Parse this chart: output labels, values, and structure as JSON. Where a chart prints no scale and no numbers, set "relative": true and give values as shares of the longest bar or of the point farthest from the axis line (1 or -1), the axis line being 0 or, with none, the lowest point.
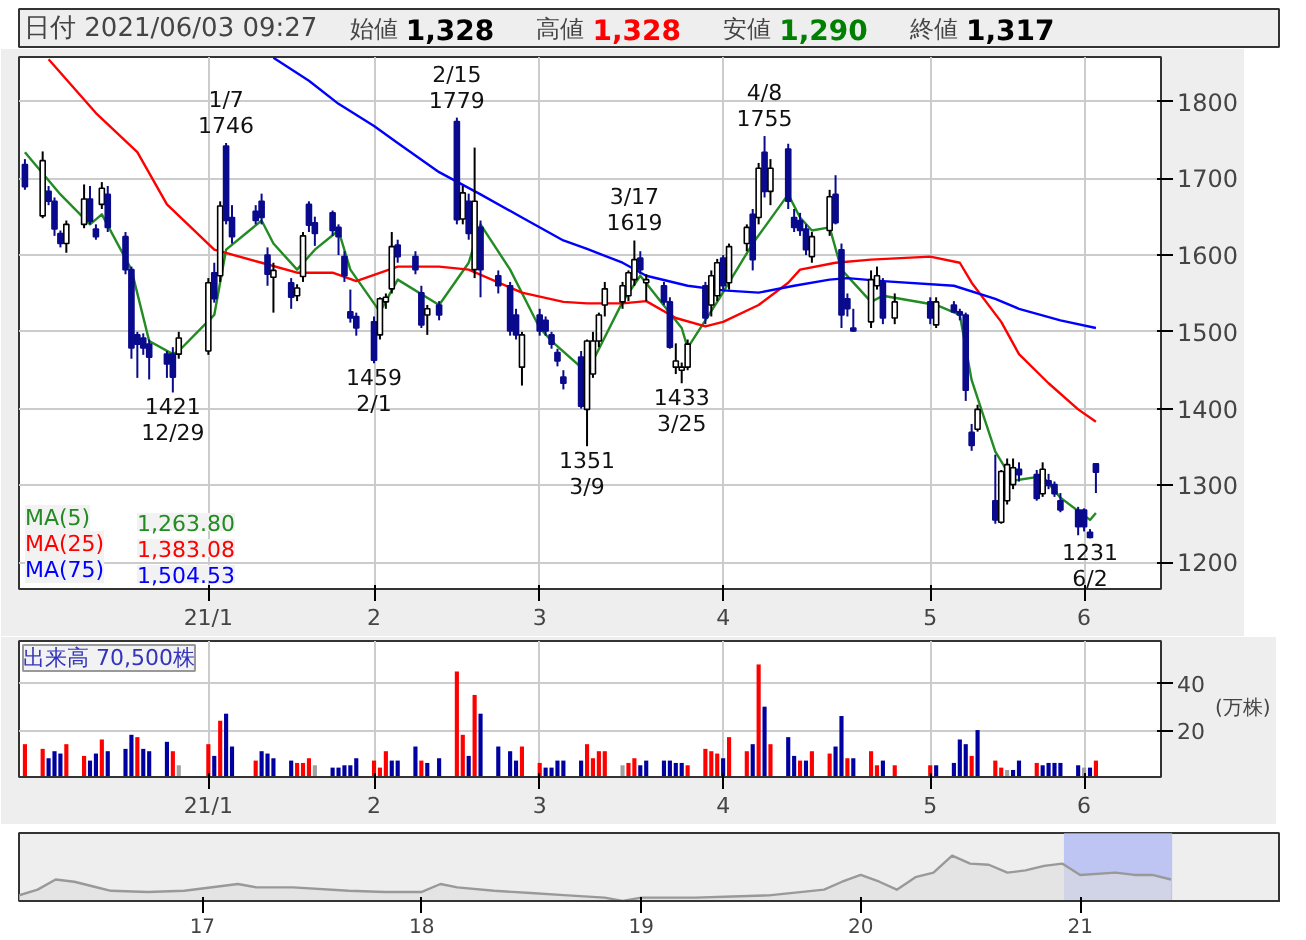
{
  "chart_data": [
    {
      "type": "candlestick",
      "title": "日付 2021/06/03 09:27",
      "annotations": [
        "始値 1,328",
        "高値 1,328",
        "安値 1,290",
        "終値 1,317",
        {
          "text": "1421\n12/29",
          "x": "2020-12-29",
          "y": 1421
        },
        {
          "text": "1/7\n1746",
          "x": "2021-01-07",
          "y": 1746
        },
        {
          "text": "1459\n2/1",
          "x": "2021-02-01",
          "y": 1459
        },
        {
          "text": "2/15\n1779",
          "x": "2021-02-15",
          "y": 1779
        },
        {
          "text": "1351\n3/9",
          "x": "2021-03-09",
          "y": 1351
        },
        {
          "text": "3/17\n1619",
          "x": "2021-03-17",
          "y": 1619
        },
        {
          "text": "1433\n3/25",
          "x": "2021-03-25",
          "y": 1433
        },
        {
          "text": "4/8\n1755",
          "x": "2021-04-08",
          "y": 1755
        },
        {
          "text": "1231\n6/2",
          "x": "2021-06-02",
          "y": 1231
        }
      ],
      "x": [
        "2020-12-04",
        "2020-12-07",
        "2020-12-08",
        "2020-12-09",
        "2020-12-10",
        "2020-12-11",
        "2020-12-14",
        "2020-12-15",
        "2020-12-16",
        "2020-12-17",
        "2020-12-18",
        "2020-12-21",
        "2020-12-22",
        "2020-12-23",
        "2020-12-24",
        "2020-12-25",
        "2020-12-28",
        "2020-12-29",
        "2020-12-30",
        "2021-01-04",
        "2021-01-05",
        "2021-01-06",
        "2021-01-07",
        "2021-01-08",
        "2021-01-12",
        "2021-01-13",
        "2021-01-14",
        "2021-01-15",
        "2021-01-18",
        "2021-01-19",
        "2021-01-20",
        "2021-01-21",
        "2021-01-22",
        "2021-01-25",
        "2021-01-26",
        "2021-01-27",
        "2021-01-28",
        "2021-01-29",
        "2021-02-01",
        "2021-02-02",
        "2021-02-03",
        "2021-02-04",
        "2021-02-05",
        "2021-02-08",
        "2021-02-09",
        "2021-02-10",
        "2021-02-12",
        "2021-02-15",
        "2021-02-16",
        "2021-02-17",
        "2021-02-18",
        "2021-02-19",
        "2021-02-22",
        "2021-02-24",
        "2021-02-25",
        "2021-02-26",
        "2021-03-01",
        "2021-03-02",
        "2021-03-03",
        "2021-03-04",
        "2021-03-05",
        "2021-03-08",
        "2021-03-09",
        "2021-03-10",
        "2021-03-11",
        "2021-03-12",
        "2021-03-15",
        "2021-03-16",
        "2021-03-17",
        "2021-03-18",
        "2021-03-19",
        "2021-03-22",
        "2021-03-23",
        "2021-03-24",
        "2021-03-25",
        "2021-03-26",
        "2021-03-29",
        "2021-03-30",
        "2021-03-31",
        "2021-04-01",
        "2021-04-02",
        "2021-04-05",
        "2021-04-06",
        "2021-04-07",
        "2021-04-08",
        "2021-04-09",
        "2021-04-12",
        "2021-04-13",
        "2021-04-14",
        "2021-04-15",
        "2021-04-16",
        "2021-04-19",
        "2021-04-20",
        "2021-04-21",
        "2021-04-22",
        "2021-04-23",
        "2021-04-26",
        "2021-04-27",
        "2021-04-28",
        "2021-04-30",
        "2021-05-06",
        "2021-05-07",
        "2021-05-10",
        "2021-05-11",
        "2021-05-12",
        "2021-05-13",
        "2021-05-14",
        "2021-05-17",
        "2021-05-18",
        "2021-05-19",
        "2021-05-20",
        "2021-05-21",
        "2021-05-24",
        "2021-05-25",
        "2021-05-26",
        "2021-05-27",
        "2021-05-28",
        "2021-05-31",
        "2021-06-01",
        "2021-06-02",
        "2021-06-03"
      ],
      "ohlc": [
        [
          1718,
          1725,
          1685,
          1689
        ],
        [
          1651,
          1735,
          1648,
          1723
        ],
        [
          1683,
          1690,
          1665,
          1670
        ],
        [
          1670,
          1675,
          1625,
          1634
        ],
        [
          1628,
          1632,
          1610,
          1615
        ],
        [
          1615,
          1645,
          1603,
          1640
        ],
        [
          1640,
          1692,
          1635,
          1673
        ],
        [
          1673,
          1690,
          1640,
          1644
        ],
        [
          1634,
          1640,
          1620,
          1624
        ],
        [
          1666,
          1695,
          1660,
          1687
        ],
        [
          1679,
          1690,
          1630,
          1636
        ],
        [
          1624,
          1630,
          1575,
          1581
        ],
        [
          1581,
          1585,
          1465,
          1479
        ],
        [
          1496,
          1500,
          1440,
          1484
        ],
        [
          1492,
          1498,
          1470,
          1479
        ],
        [
          1484,
          1490,
          1438,
          1467
        ],
        [
          1471,
          1475,
          1440,
          1458
        ],
        [
          1471,
          1480,
          1421,
          1441
        ],
        [
          1471,
          1500,
          1465,
          1492
        ],
        [
          1475,
          1570,
          1470,
          1564
        ],
        [
          1577,
          1590,
          1538,
          1543
        ],
        [
          1573,
          1670,
          1565,
          1664
        ],
        [
          1742,
          1746,
          1640,
          1645
        ],
        [
          1649,
          1665,
          1615,
          1624
        ],
        [
          1657,
          1665,
          1640,
          1645
        ],
        [
          1670,
          1680,
          1640,
          1649
        ],
        [
          1600,
          1610,
          1560,
          1575
        ],
        [
          1571,
          1590,
          1525,
          1580
        ],
        [
          1564,
          1570,
          1530,
          1545
        ],
        [
          1547,
          1562,
          1540,
          1557
        ],
        [
          1572,
          1630,
          1565,
          1625
        ],
        [
          1666,
          1670,
          1630,
          1639
        ],
        [
          1642,
          1650,
          1612,
          1628
        ],
        [
          1655,
          1658,
          1625,
          1632
        ],
        [
          1636,
          1640,
          1600,
          1624
        ],
        [
          1598,
          1605,
          1565,
          1573
        ],
        [
          1526,
          1555,
          1512,
          1518
        ],
        [
          1520,
          1525,
          1495,
          1505
        ],
        [
          1513,
          1520,
          1459,
          1463
        ],
        [
          1496,
          1545,
          1490,
          1543
        ],
        [
          1539,
          1550,
          1530,
          1545
        ],
        [
          1556,
          1630,
          1550,
          1611
        ],
        [
          1613,
          1620,
          1590,
          1598
        ],
        [
          1598,
          1605,
          1575,
          1581
        ],
        [
          1551,
          1560,
          1505,
          1509
        ],
        [
          1522,
          1535,
          1496,
          1530
        ],
        [
          1535,
          1540,
          1515,
          1522
        ],
        [
          1774,
          1779,
          1640,
          1646
        ],
        [
          1647,
          1690,
          1640,
          1681
        ],
        [
          1670,
          1680,
          1620,
          1628
        ],
        [
          1581,
          1740,
          1570,
          1670
        ],
        [
          1636,
          1645,
          1545,
          1581
        ],
        [
          1573,
          1580,
          1550,
          1560
        ],
        [
          1560,
          1565,
          1495,
          1501
        ],
        [
          1522,
          1530,
          1490,
          1496
        ],
        [
          1454,
          1500,
          1430,
          1496
        ],
        [
          1522,
          1530,
          1495,
          1501
        ],
        [
          1515,
          1520,
          1495,
          1501
        ],
        [
          1496,
          1500,
          1478,
          1484
        ],
        [
          1473,
          1478,
          1455,
          1462
        ],
        [
          1441,
          1450,
          1425,
          1433
        ],
        [
          1467,
          1475,
          1400,
          1403
        ],
        [
          1399,
          1490,
          1351,
          1488
        ],
        [
          1445,
          1500,
          1440,
          1488
        ],
        [
          1488,
          1525,
          1480,
          1522
        ],
        [
          1535,
          1565,
          1520,
          1556
        ],
        [
          1539,
          1565,
          1530,
          1560
        ],
        [
          1547,
          1580,
          1540,
          1577
        ],
        [
          1568,
          1619,
          1560,
          1594
        ],
        [
          1596,
          1605,
          1575,
          1581
        ],
        [
          1564,
          1575,
          1540,
          1568
        ],
        [
          1560,
          1565,
          1535,
          1539
        ],
        [
          1539,
          1545,
          1478,
          1480
        ],
        [
          1454,
          1485,
          1445,
          1462
        ],
        [
          1450,
          1460,
          1433,
          1454
        ],
        [
          1454,
          1490,
          1450,
          1484
        ],
        [
          1560,
          1565,
          1510,
          1518
        ],
        [
          1535,
          1580,
          1520,
          1573
        ],
        [
          1547,
          1595,
          1540,
          1590
        ],
        [
          1596,
          1600,
          1555,
          1560
        ],
        [
          1564,
          1615,
          1555,
          1611
        ],
        [
          1615,
          1640,
          1605,
          1636
        ],
        [
          1653,
          1660,
          1580,
          1594
        ],
        [
          1649,
          1720,
          1640,
          1713
        ],
        [
          1734,
          1755,
          1675,
          1683
        ],
        [
          1683,
          1725,
          1665,
          1713
        ],
        [
          1738,
          1745,
          1660,
          1670
        ],
        [
          1649,
          1660,
          1630,
          1636
        ],
        [
          1645,
          1655,
          1625,
          1632
        ],
        [
          1634,
          1640,
          1600,
          1607
        ],
        [
          1598,
          1630,
          1590,
          1624
        ],
        [
          1632,
          1685,
          1625,
          1676
        ],
        [
          1679,
          1704,
          1640,
          1642
        ],
        [
          1607,
          1615,
          1505,
          1522
        ],
        [
          1543,
          1550,
          1520,
          1530
        ],
        [
          1505,
          1530,
          1500,
          1501
        ],
        [
          1513,
          1580,
          1505,
          1568
        ],
        [
          1560,
          1585,
          1555,
          1573
        ],
        [
          1564,
          1570,
          1510,
          1518
        ],
        [
          1518,
          1550,
          1510,
          1539
        ],
        [
          1539,
          1545,
          1510,
          1518
        ],
        [
          1509,
          1545,
          1505,
          1539
        ],
        [
          1535,
          1540,
          1525,
          1526
        ],
        [
          1526,
          1530,
          1515,
          1522
        ],
        [
          1522,
          1525,
          1410,
          1424
        ],
        [
          1369,
          1380,
          1345,
          1352
        ],
        [
          1373,
          1405,
          1370,
          1399
        ],
        [
          1280,
          1340,
          1250,
          1255
        ],
        [
          1252,
          1320,
          1250,
          1318
        ],
        [
          1280,
          1335,
          1275,
          1327
        ],
        [
          1301,
          1335,
          1295,
          1323
        ],
        [
          1321,
          1330,
          1305,
          1314
        ],
        [
          1314,
          1320,
          1280,
          1283
        ],
        [
          1289,
          1330,
          1285,
          1321
        ],
        [
          1306,
          1315,
          1295,
          1300
        ],
        [
          1301,
          1305,
          1285,
          1289
        ],
        [
          1280,
          1290,
          1265,
          1268
        ],
        [
          1268,
          1272,
          1235,
          1246
        ],
        [
          1268,
          1270,
          1240,
          1246
        ],
        [
          1239,
          1243,
          1231,
          1232
        ],
        [
          1328,
          1328,
          1290,
          1317
        ]
      ],
      "series": [
        {
          "name": "MA(5) 1,263.80",
          "type": "line",
          "color": "#228b22",
          "x": [
            "2020-12-04",
            "2020-12-10",
            "2020-12-15",
            "2020-12-17",
            "2020-12-22",
            "2020-12-25",
            "2020-12-29",
            "2020-12-30",
            "2021-01-05",
            "2021-01-07",
            "2021-01-13",
            "2021-01-15",
            "2021-01-19",
            "2021-01-22",
            "2021-01-26",
            "2021-01-28",
            "2021-02-02",
            "2021-02-05",
            "2021-02-12",
            "2021-02-17",
            "2021-02-19",
            "2021-02-24",
            "2021-03-01",
            "2021-03-03",
            "2021-03-09",
            "2021-03-15",
            "2021-03-18",
            "2021-03-25",
            "2021-03-26",
            "2021-03-31",
            "2021-04-06",
            "2021-04-12",
            "2021-04-14",
            "2021-04-16",
            "2021-04-19",
            "2021-04-21",
            "2021-04-26",
            "2021-04-28",
            "2021-05-07",
            "2021-05-11",
            "2021-05-13",
            "2021-05-17",
            "2021-05-20",
            "2021-05-25",
            "2021-05-28",
            "2021-06-02",
            "2021-06-03"
          ],
          "values": [
            1734,
            1679,
            1640,
            1653,
            1581,
            1488,
            1471,
            1475,
            1522,
            1607,
            1645,
            1615,
            1581,
            1607,
            1632,
            1581,
            1526,
            1568,
            1535,
            1590,
            1640,
            1581,
            1505,
            1488,
            1447,
            1539,
            1573,
            1505,
            1479,
            1539,
            1615,
            1679,
            1649,
            1632,
            1636,
            1581,
            1539,
            1547,
            1535,
            1522,
            1437,
            1344,
            1306,
            1312,
            1284,
            1255,
            1264
          ]
        },
        {
          "name": "MA(25) 1,383.08",
          "type": "line",
          "color": "#ff0000",
          "x": [
            "2020-12-08",
            "2020-12-16",
            "2020-12-23",
            "2020-12-28",
            "2021-01-05",
            "2021-01-13",
            "2021-01-19",
            "2021-01-25",
            "2021-01-29",
            "2021-02-05",
            "2021-02-12",
            "2021-02-17",
            "2021-02-26",
            "2021-03-05",
            "2021-03-09",
            "2021-03-15",
            "2021-03-19",
            "2021-03-24",
            "2021-03-29",
            "2021-04-01",
            "2021-04-07",
            "2021-04-12",
            "2021-04-14",
            "2021-04-20",
            "2021-04-26",
            "2021-05-06",
            "2021-05-11",
            "2021-05-13",
            "2021-05-18",
            "2021-05-21",
            "2021-05-26",
            "2021-05-31",
            "2021-06-03"
          ],
          "values": [
            1855,
            1785,
            1734,
            1666,
            1607,
            1590,
            1577,
            1577,
            1566,
            1585,
            1585,
            1581,
            1551,
            1539,
            1537,
            1537,
            1540,
            1518,
            1507,
            1513,
            1535,
            1564,
            1581,
            1590,
            1594,
            1598,
            1590,
            1564,
            1513,
            1471,
            1433,
            1399,
            1383
          ]
        },
        {
          "name": "MA(75) 1,504.53",
          "type": "line",
          "color": "#0000ff",
          "x": [
            "2021-01-15",
            "2021-01-21",
            "2021-01-26",
            "2021-02-01",
            "2021-02-05",
            "2021-02-12",
            "2021-02-19",
            "2021-02-26",
            "2021-03-05",
            "2021-03-09",
            "2021-03-15",
            "2021-03-19",
            "2021-03-26",
            "2021-04-01",
            "2021-04-07",
            "2021-04-13",
            "2021-04-19",
            "2021-04-22",
            "2021-04-28",
            "2021-05-10",
            "2021-05-17",
            "2021-05-21",
            "2021-05-28",
            "2021-06-03"
          ],
          "values": [
            1857,
            1827,
            1797,
            1768,
            1746,
            1708,
            1679,
            1649,
            1619,
            1608,
            1590,
            1573,
            1560,
            1554,
            1551,
            1560,
            1568,
            1570,
            1566,
            1560,
            1543,
            1530,
            1515,
            1505
          ]
        }
      ],
      "xlim": [
        "2020-12-03",
        "2021-06-14"
      ],
      "ylim": [
        1165,
        1858
      ],
      "yticks": [
        1200,
        1300,
        1400,
        1500,
        1600,
        1700,
        1800
      ],
      "xticks": [
        {
          "value": "2021-01-04",
          "label": "21/1"
        },
        {
          "value": "2021-02-01",
          "label": "2"
        },
        {
          "value": "2021-03-01",
          "label": "3"
        },
        {
          "value": "2021-04-01",
          "label": "4"
        },
        {
          "value": "2021-05-06",
          "label": "5"
        },
        {
          "value": "2021-06-01",
          "label": "6"
        }
      ],
      "grid": true
    },
    {
      "type": "bar",
      "title": "出来高 70,500株",
      "ylabel": "(万株)",
      "x": [
        "2020-12-04",
        "2020-12-07",
        "2020-12-08",
        "2020-12-09",
        "2020-12-10",
        "2020-12-11",
        "2020-12-14",
        "2020-12-15",
        "2020-12-16",
        "2020-12-17",
        "2020-12-18",
        "2020-12-21",
        "2020-12-22",
        "2020-12-23",
        "2020-12-24",
        "2020-12-25",
        "2020-12-28",
        "2020-12-29",
        "2020-12-30",
        "2021-01-04",
        "2021-01-05",
        "2021-01-06",
        "2021-01-07",
        "2021-01-08",
        "2021-01-12",
        "2021-01-13",
        "2021-01-14",
        "2021-01-15",
        "2021-01-18",
        "2021-01-19",
        "2021-01-20",
        "2021-01-21",
        "2021-01-22",
        "2021-01-25",
        "2021-01-26",
        "2021-01-27",
        "2021-01-28",
        "2021-01-29",
        "2021-02-01",
        "2021-02-02",
        "2021-02-03",
        "2021-02-04",
        "2021-02-05",
        "2021-02-08",
        "2021-02-09",
        "2021-02-10",
        "2021-02-12",
        "2021-02-15",
        "2021-02-16",
        "2021-02-17",
        "2021-02-18",
        "2021-02-19",
        "2021-02-22",
        "2021-02-24",
        "2021-02-25",
        "2021-02-26",
        "2021-03-01",
        "2021-03-02",
        "2021-03-03",
        "2021-03-04",
        "2021-03-05",
        "2021-03-08",
        "2021-03-09",
        "2021-03-10",
        "2021-03-11",
        "2021-03-12",
        "2021-03-15",
        "2021-03-16",
        "2021-03-17",
        "2021-03-18",
        "2021-03-19",
        "2021-03-22",
        "2021-03-23",
        "2021-03-24",
        "2021-03-25",
        "2021-03-26",
        "2021-03-29",
        "2021-03-30",
        "2021-03-31",
        "2021-04-01",
        "2021-04-02",
        "2021-04-05",
        "2021-04-06",
        "2021-04-07",
        "2021-04-08",
        "2021-04-09",
        "2021-04-12",
        "2021-04-13",
        "2021-04-14",
        "2021-04-15",
        "2021-04-16",
        "2021-04-19",
        "2021-04-20",
        "2021-04-21",
        "2021-04-22",
        "2021-04-23",
        "2021-04-26",
        "2021-04-27",
        "2021-04-28",
        "2021-04-30",
        "2021-05-06",
        "2021-05-07",
        "2021-05-10",
        "2021-05-11",
        "2021-05-12",
        "2021-05-13",
        "2021-05-14",
        "2021-05-17",
        "2021-05-18",
        "2021-05-19",
        "2021-05-20",
        "2021-05-21",
        "2021-05-24",
        "2021-05-25",
        "2021-05-26",
        "2021-05-27",
        "2021-05-28",
        "2021-05-31",
        "2021-06-01",
        "2021-06-02",
        "2021-06-03"
      ],
      "values": [
        14,
        12,
        8,
        11,
        10,
        14,
        9,
        7,
        10,
        16,
        11,
        12,
        18,
        17,
        12,
        11,
        15,
        11,
        5,
        14,
        9,
        24,
        27,
        13,
        7,
        11,
        10,
        8,
        7,
        6,
        6,
        8,
        5,
        4,
        4,
        5,
        5,
        8,
        7,
        4,
        11,
        7,
        7,
        13,
        7,
        6,
        8,
        45,
        18,
        9,
        35,
        27,
        13,
        11,
        7,
        13,
        6,
        4,
        4,
        7,
        7,
        7,
        14,
        8,
        11,
        11,
        5,
        6,
        8,
        5,
        7,
        7,
        7,
        6,
        6,
        5,
        12,
        11,
        10,
        8,
        17,
        11,
        14,
        48,
        30,
        14,
        17,
        9,
        7,
        7,
        11,
        10,
        13,
        26,
        8,
        8,
        11,
        5,
        7,
        5,
        5,
        5,
        6,
        16,
        14,
        9,
        20,
        7,
        4,
        3,
        3,
        7,
        6,
        5,
        6,
        6,
        6,
        5,
        4,
        4,
        7
      ],
      "colors": [
        "#ff0000",
        "#ff0000",
        "#0000a0",
        "#0000a0",
        "#0000a0",
        "#ff0000",
        "#ff0000",
        "#0000a0",
        "#0000a0",
        "#ff0000",
        "#0000a0",
        "#0000a0",
        "#0000a0",
        "#ff0000",
        "#0000a0",
        "#0000a0",
        "#0000a0",
        "#ff0000",
        "#a0a0a0",
        "#ff0000",
        "#0000a0",
        "#ff0000",
        "#0000a0",
        "#0000a0",
        "#ff0000",
        "#0000a0",
        "#0000a0",
        "#0000a0",
        "#0000a0",
        "#ff0000",
        "#ff0000",
        "#ff0000",
        "#a0a0a0",
        "#0000a0",
        "#0000a0",
        "#0000a0",
        "#0000a0",
        "#0000a0",
        "#ff0000",
        "#ff0000",
        "#ff0000",
        "#0000a0",
        "#0000a0",
        "#0000a0",
        "#ff0000",
        "#0000a0",
        "#0000a0",
        "#ff0000",
        "#ff0000",
        "#0000a0",
        "#ff0000",
        "#0000a0",
        "#0000a0",
        "#0000a0",
        "#0000a0",
        "#ff0000",
        "#ff0000",
        "#0000a0",
        "#0000a0",
        "#0000a0",
        "#0000a0",
        "#0000a0",
        "#ff0000",
        "#ff0000",
        "#ff0000",
        "#ff0000",
        "#a0a0a0",
        "#ff0000",
        "#ff0000",
        "#0000a0",
        "#0000a0",
        "#0000a0",
        "#0000a0",
        "#0000a0",
        "#0000a0",
        "#ff0000",
        "#ff0000",
        "#ff0000",
        "#ff0000",
        "#0000a0",
        "#ff0000",
        "#ff0000",
        "#0000a0",
        "#ff0000",
        "#0000a0",
        "#ff0000",
        "#0000a0",
        "#0000a0",
        "#ff0000",
        "#0000a0",
        "#ff0000",
        "#ff0000",
        "#0000a0",
        "#0000a0",
        "#ff0000",
        "#0000a0",
        "#ff0000",
        "#ff0000",
        "#0000a0",
        "#ff0000",
        "#ff0000",
        "#0000a0",
        "#0000a0",
        "#0000a0",
        "#0000a0",
        "#ff0000",
        "#0000a0",
        "#ff0000",
        "#ff0000",
        "#a0a0a0",
        "#0000a0",
        "#0000a0",
        "#ff0000",
        "#0000a0",
        "#0000a0",
        "#0000a0",
        "#0000a0",
        "#0000a0",
        "#a0a0a0",
        "#0000a0",
        "#ff0000"
      ],
      "xlim": [
        "2020-12-03",
        "2021-06-14"
      ],
      "ylim": [
        0,
        58
      ],
      "yticks": [
        20,
        40
      ],
      "xticks": [
        {
          "value": "2021-01-04",
          "label": "21/1"
        },
        {
          "value": "2021-02-01",
          "label": "2"
        },
        {
          "value": "2021-03-01",
          "label": "3"
        },
        {
          "value": "2021-04-01",
          "label": "4"
        },
        {
          "value": "2021-05-06",
          "label": "5"
        },
        {
          "value": "2021-06-01",
          "label": "6"
        }
      ],
      "grid": true
    },
    {
      "type": "area",
      "relative": true,
      "color": "#999999",
      "x": [
        "2016-03",
        "2016-04",
        "2016-05",
        "2016-06",
        "2016-07",
        "2016-08",
        "2016-10",
        "2016-12",
        "2017-03",
        "2017-04",
        "2017-06",
        "2017-09",
        "2017-11",
        "2018-01",
        "2018-02",
        "2018-03",
        "2018-05",
        "2018-07",
        "2018-09",
        "2018-11",
        "2018-12",
        "2019-01",
        "2019-04",
        "2019-06",
        "2019-08",
        "2019-11",
        "2019-12",
        "2020-01",
        "2020-02",
        "2020-03",
        "2020-04",
        "2020-05",
        "2020-06",
        "2020-07",
        "2020-08",
        "2020-09",
        "2020-10",
        "2020-11",
        "2020-12",
        "2021-01",
        "2021-03",
        "2021-04",
        "2021-05",
        "2021-06"
      ],
      "values": [
        0.125,
        0.25,
        0.475,
        0.425,
        0.325,
        0.225,
        0.2,
        0.225,
        0.375,
        0.3,
        0.3,
        0.225,
        0.2,
        0.2,
        0.375,
        0.3,
        0.225,
        0.175,
        0.125,
        0.075,
        0,
        0.075,
        0.075,
        0.1,
        0.125,
        0.25,
        0.425,
        0.575,
        0.425,
        0.25,
        0.525,
        0.625,
        1,
        0.825,
        0.8,
        0.625,
        0.675,
        0.775,
        0.825,
        0.575,
        0.625,
        0.575,
        0.575,
        0.475
      ],
      "bands": [
        {
          "axis": "x",
          "from": "2020-12-04",
          "to": "2021-06-03",
          "color": "#aab4f5"
        }
      ],
      "xlim": [
        "2016-03-01",
        "2021-12-01"
      ],
      "xticks": [
        {
          "value": "2017-01-01",
          "label": "17"
        },
        {
          "value": "2018-01-01",
          "label": "18"
        },
        {
          "value": "2019-01-01",
          "label": "19"
        },
        {
          "value": "2020-01-01",
          "label": "20"
        },
        {
          "value": "2021-01-01",
          "label": "21"
        }
      ]
    }
  ]
}
